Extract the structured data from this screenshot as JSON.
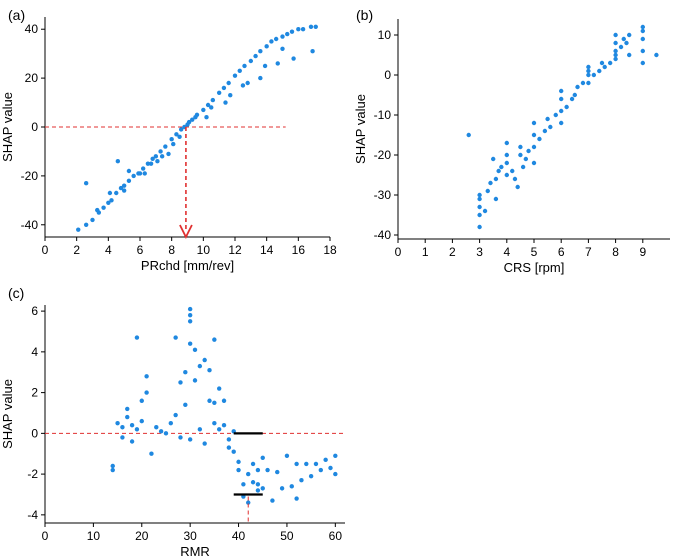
{
  "chart_data": [
    {
      "id": "a",
      "type": "scatter",
      "panel_label": "(a)",
      "xlabel": "PRchd [mm/rev]",
      "ylabel": "SHAP value",
      "xlim": [
        0,
        18
      ],
      "ylim": [
        -45,
        45
      ],
      "xticks": [
        0,
        2,
        4,
        6,
        8,
        10,
        12,
        14,
        16,
        18
      ],
      "yticks": [
        -40,
        -20,
        0,
        20,
        40
      ],
      "point_color": "#1f88e0",
      "series": [
        {
          "name": "shap",
          "x": [
            2.1,
            2.6,
            3,
            3.4,
            3.7,
            4,
            4.2,
            4.5,
            4.8,
            5,
            5.3,
            5.6,
            5.9,
            6.2,
            6.5,
            6.8,
            7,
            7.3,
            7.6,
            8,
            8.3,
            8.6,
            8.8,
            9,
            9.3,
            9.6,
            10,
            10.3,
            10.6,
            11,
            11.3,
            11.6,
            12,
            12.3,
            12.6,
            13,
            13.3,
            13.6,
            14,
            14.3,
            14.6,
            15,
            15.3,
            15.6,
            16,
            16.3,
            16.8,
            17.1,
            2.6,
            4.6,
            5.3,
            6,
            6.7,
            7.4,
            8.1,
            9.1,
            10.2,
            11.4,
            12.5,
            13.6,
            14.7,
            15.7,
            16.9,
            3.3,
            4.1,
            5,
            6.3,
            7.1,
            7.8,
            8.5,
            9.5,
            10.5,
            11.7,
            12.8,
            13.9,
            15
          ],
          "y": [
            -42,
            -40,
            -38,
            -35,
            -33,
            -31,
            -30,
            -27,
            -25,
            -24,
            -22,
            -20,
            -19,
            -17,
            -15,
            -13,
            -12,
            -10,
            -8,
            -5,
            -3,
            -1,
            0,
            1,
            3,
            5,
            7,
            9,
            11,
            14,
            16,
            18,
            21,
            23,
            25,
            27,
            29,
            31,
            33,
            35,
            36,
            37,
            38,
            39,
            40,
            40,
            41,
            41,
            -23,
            -14,
            -18,
            -19,
            -15,
            -12,
            -7,
            2,
            4,
            10,
            17,
            20,
            26,
            28,
            31,
            -34,
            -27,
            -26,
            -19,
            -14,
            -11,
            -4,
            4,
            8,
            13,
            18,
            25,
            32
          ]
        }
      ],
      "hline": {
        "y": 0,
        "x_from": 0,
        "x_to": 15.2,
        "color": "#e03030"
      },
      "vline": {
        "x": 8.9,
        "y_from": 0,
        "y_to": -45,
        "color": "#e03030",
        "arrow": true
      }
    },
    {
      "id": "b",
      "type": "scatter",
      "panel_label": "(b)",
      "xlabel": "CRS [rpm]",
      "ylabel": "SHAP value",
      "xlim": [
        0,
        10
      ],
      "ylim": [
        -41,
        14
      ],
      "xticks": [
        0,
        1,
        2,
        3,
        4,
        5,
        6,
        7,
        8,
        9
      ],
      "yticks": [
        -40,
        -30,
        -20,
        -10,
        0,
        10
      ],
      "point_color": "#1f88e0",
      "series": [
        {
          "name": "shap",
          "x": [
            2.6,
            3,
            3,
            3,
            3,
            3,
            3.2,
            3.3,
            3.4,
            3.5,
            3.6,
            3.6,
            3.7,
            3.8,
            4,
            4,
            4,
            4,
            4.2,
            4.3,
            4.4,
            4.5,
            4.5,
            4.6,
            4.7,
            4.8,
            5,
            5,
            5,
            5,
            5.2,
            5.4,
            5.5,
            5.6,
            5.8,
            6,
            6,
            6,
            6,
            6.2,
            6.4,
            6.5,
            6.6,
            6.8,
            7,
            7,
            7,
            7,
            7.2,
            7.4,
            7.5,
            7.6,
            7.8,
            8,
            8,
            8,
            8,
            8,
            8.2,
            8.3,
            8.4,
            8.5,
            8.5,
            9,
            9,
            9,
            9,
            9,
            9.5
          ],
          "y": [
            -15,
            -38,
            -35,
            -33,
            -31,
            -30,
            -34,
            -29,
            -27,
            -21,
            -26,
            -31,
            -24,
            -23,
            -25,
            -22,
            -20,
            -17,
            -24,
            -26,
            -28,
            -18,
            -20,
            -23,
            -21,
            -19,
            -22,
            -18,
            -15,
            -12,
            -16,
            -14,
            -11,
            -13,
            -10,
            -12,
            -9,
            -6,
            -4,
            -8,
            -6,
            -5,
            -3,
            -2,
            -2,
            0,
            1,
            2,
            0,
            1,
            3,
            2,
            3,
            4,
            6,
            8,
            10,
            5,
            7,
            9,
            8,
            5,
            10,
            3,
            6,
            9,
            11,
            12,
            5
          ]
        }
      ]
    },
    {
      "id": "c",
      "type": "scatter",
      "panel_label": "(c)",
      "xlabel": "RMR",
      "ylabel": "SHAP value",
      "xlim": [
        0,
        62
      ],
      "ylim": [
        -4.4,
        6.3
      ],
      "xticks": [
        0,
        10,
        20,
        30,
        40,
        50,
        60
      ],
      "yticks": [
        -4,
        -2,
        0,
        2,
        4,
        6
      ],
      "point_color": "#1f88e0",
      "series": [
        {
          "name": "shap",
          "x": [
            14,
            14,
            15,
            16,
            16,
            17,
            17,
            18,
            18,
            19,
            19,
            20,
            20,
            21,
            22,
            23,
            24,
            25,
            26,
            27,
            27,
            28,
            28,
            29,
            29,
            30,
            30,
            30,
            31,
            31,
            32,
            32,
            33,
            33,
            34,
            34,
            35,
            35,
            36,
            36,
            37,
            37,
            38,
            38,
            39,
            39,
            40,
            40,
            41,
            41,
            42,
            42,
            43,
            43,
            44,
            44,
            45,
            45,
            46,
            47,
            48,
            49,
            50,
            51,
            52,
            53,
            54,
            55,
            56,
            57,
            58,
            59,
            60,
            60,
            21,
            30,
            30,
            35,
            44,
            52
          ],
          "y": [
            -1.6,
            -1.8,
            0.5,
            0.3,
            -0.2,
            0.8,
            1.2,
            0.4,
            -0.4,
            0.2,
            4.7,
            0.6,
            1.6,
            2,
            -1,
            0.3,
            0.1,
            0,
            0.5,
            0.9,
            4.7,
            2.5,
            -0.2,
            1.4,
            3,
            5.5,
            6.1,
            -0.3,
            4.1,
            2.6,
            3.3,
            0.2,
            3.6,
            -0.5,
            3.1,
            1.6,
            1.5,
            0.5,
            0.2,
            2.2,
            0.4,
            1.6,
            -0.7,
            -0.3,
            0.1,
            -0.9,
            -1.4,
            -1.8,
            -2.5,
            -3.1,
            -3.4,
            -2,
            -1.5,
            -2.4,
            -2.8,
            -1.8,
            -2.7,
            -1.2,
            -1.8,
            -3.3,
            -1.9,
            -2.7,
            -1.1,
            -2.6,
            -1.5,
            -2.3,
            -1.5,
            -2.1,
            -1.5,
            -1.8,
            -1.3,
            -1.7,
            -1.1,
            -2,
            2.8,
            5.8,
            4.4,
            4.6,
            -2.5,
            -3.2
          ]
        }
      ],
      "hline": {
        "y": 0,
        "x_from": 0,
        "x_to": 62,
        "color": "#e03030"
      },
      "vline": {
        "x": 42,
        "y_from": -3.1,
        "y_to": -4.4,
        "color": "#e03030",
        "arrow": false
      },
      "black_segments": [
        {
          "x_from": 39,
          "x_to": 45,
          "y": 0
        },
        {
          "x_from": 39,
          "x_to": 45,
          "y": -3.0
        }
      ]
    }
  ]
}
